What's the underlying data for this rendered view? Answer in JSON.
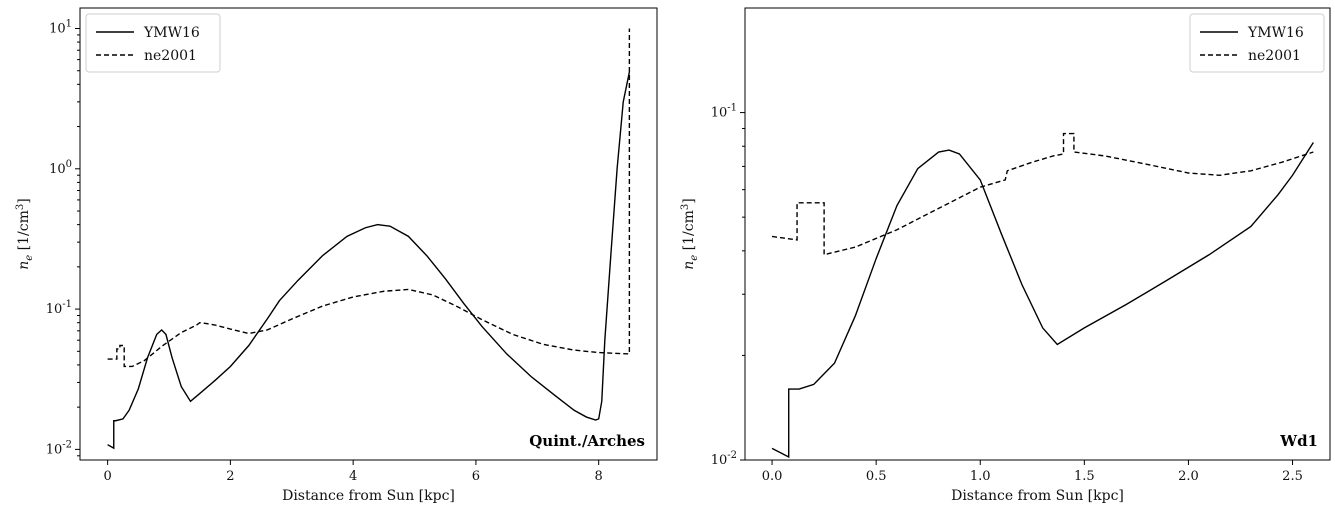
{
  "chart_data": [
    {
      "type": "line",
      "panel_label": "Quint./Arches",
      "xlabel": "Distance from Sun [kpc]",
      "ylabel": "n_e [1/cm^3]",
      "yscale": "log",
      "xlim": [
        -0.45,
        8.95
      ],
      "ylim": [
        0.0084,
        14
      ],
      "xticks": [
        0,
        2,
        4,
        6,
        8
      ],
      "yticks": [
        0.01,
        0.1,
        1,
        10
      ],
      "legend_loc": "top-left",
      "series": [
        {
          "name": "YMW16",
          "style": "solid",
          "x": [
            0.0,
            0.1,
            0.1,
            0.13,
            0.25,
            0.35,
            0.5,
            0.65,
            0.8,
            0.88,
            0.95,
            1.05,
            1.2,
            1.35,
            1.5,
            1.75,
            2.0,
            2.3,
            2.6,
            2.8,
            3.1,
            3.5,
            3.9,
            4.2,
            4.4,
            4.6,
            4.9,
            5.2,
            5.5,
            5.8,
            6.1,
            6.5,
            6.9,
            7.3,
            7.6,
            7.8,
            7.95,
            8.0,
            8.05,
            8.1,
            8.2,
            8.3,
            8.4,
            8.5
          ],
          "y": [
            0.0108,
            0.0102,
            0.016,
            0.016,
            0.0165,
            0.019,
            0.027,
            0.045,
            0.066,
            0.071,
            0.066,
            0.045,
            0.028,
            0.022,
            0.025,
            0.031,
            0.039,
            0.055,
            0.085,
            0.115,
            0.16,
            0.24,
            0.33,
            0.38,
            0.4,
            0.39,
            0.33,
            0.24,
            0.165,
            0.11,
            0.075,
            0.048,
            0.033,
            0.024,
            0.019,
            0.017,
            0.0162,
            0.0165,
            0.022,
            0.06,
            0.25,
            1.0,
            3.0,
            4.9
          ]
        },
        {
          "name": "ne2001",
          "style": "dashed",
          "x": [
            0.0,
            0.15,
            0.15,
            0.2,
            0.2,
            0.27,
            0.27,
            0.4,
            0.6,
            0.9,
            1.2,
            1.45,
            1.5,
            1.6,
            1.75,
            2.0,
            2.3,
            2.6,
            3.0,
            3.5,
            4.0,
            4.5,
            4.9,
            5.3,
            5.7,
            6.1,
            6.6,
            7.1,
            7.6,
            8.0,
            8.45,
            8.5,
            8.5
          ],
          "y": [
            0.044,
            0.044,
            0.052,
            0.052,
            0.055,
            0.055,
            0.039,
            0.039,
            0.043,
            0.055,
            0.068,
            0.077,
            0.08,
            0.079,
            0.077,
            0.072,
            0.067,
            0.071,
            0.085,
            0.105,
            0.122,
            0.134,
            0.138,
            0.126,
            0.104,
            0.084,
            0.066,
            0.056,
            0.051,
            0.049,
            0.048,
            0.048,
            10.0
          ]
        }
      ]
    },
    {
      "type": "line",
      "panel_label": "Wd1",
      "xlabel": "Distance from Sun [kpc]",
      "ylabel": "n_e [1/cm^3]",
      "yscale": "log",
      "xlim": [
        -0.13,
        2.68
      ],
      "ylim": [
        0.01,
        0.2
      ],
      "xticks": [
        0.0,
        0.5,
        1.0,
        1.5,
        2.0,
        2.5
      ],
      "yticks": [
        0.01,
        0.1
      ],
      "legend_loc": "top-right",
      "series": [
        {
          "name": "YMW16",
          "style": "solid",
          "x": [
            0.0,
            0.08,
            0.08,
            0.13,
            0.2,
            0.3,
            0.4,
            0.5,
            0.6,
            0.7,
            0.8,
            0.85,
            0.9,
            1.0,
            1.1,
            1.2,
            1.3,
            1.37,
            1.5,
            1.7,
            1.9,
            2.1,
            2.3,
            2.43,
            2.5,
            2.6
          ],
          "y": [
            0.0108,
            0.0102,
            0.016,
            0.016,
            0.0165,
            0.019,
            0.026,
            0.038,
            0.054,
            0.069,
            0.077,
            0.078,
            0.076,
            0.064,
            0.045,
            0.032,
            0.024,
            0.0215,
            0.024,
            0.028,
            0.033,
            0.039,
            0.047,
            0.058,
            0.066,
            0.082
          ]
        },
        {
          "name": "ne2001",
          "style": "dashed",
          "x": [
            0.0,
            0.12,
            0.12,
            0.25,
            0.25,
            0.4,
            0.6,
            0.8,
            1.0,
            1.12,
            1.13,
            1.25,
            1.35,
            1.4,
            1.4,
            1.45,
            1.45,
            1.6,
            1.8,
            2.0,
            2.15,
            2.3,
            2.45,
            2.6
          ],
          "y": [
            0.044,
            0.043,
            0.055,
            0.055,
            0.039,
            0.041,
            0.046,
            0.053,
            0.061,
            0.064,
            0.068,
            0.072,
            0.075,
            0.076,
            0.087,
            0.087,
            0.077,
            0.075,
            0.071,
            0.067,
            0.066,
            0.068,
            0.072,
            0.077
          ]
        }
      ]
    }
  ]
}
